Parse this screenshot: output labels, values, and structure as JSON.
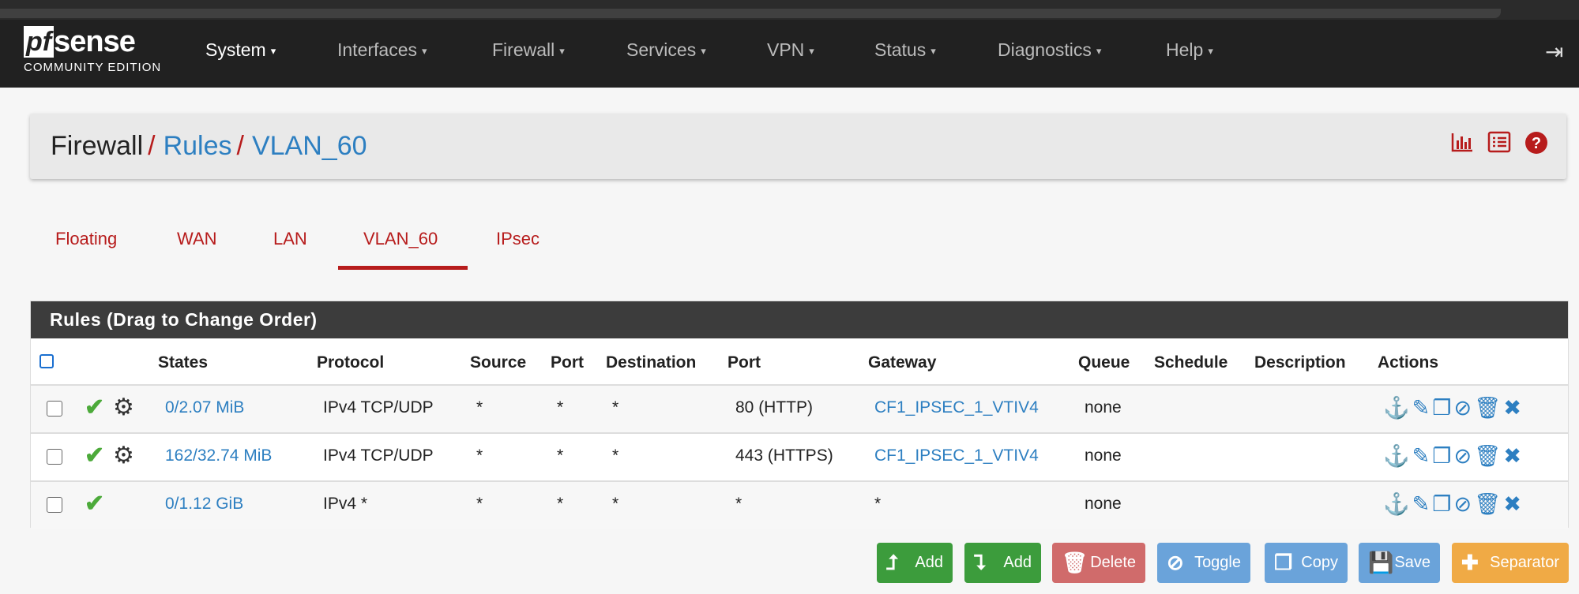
{
  "logo": {
    "pf": "pf",
    "sense": "sense",
    "edition": "COMMUNITY EDITION"
  },
  "nav": {
    "items": [
      {
        "label": "System"
      },
      {
        "label": "Interfaces"
      },
      {
        "label": "Firewall"
      },
      {
        "label": "Services"
      },
      {
        "label": "VPN"
      },
      {
        "label": "Status"
      },
      {
        "label": "Diagnostics"
      },
      {
        "label": "Help"
      }
    ],
    "caret": "▾",
    "logout_icon": "⇥"
  },
  "breadcrumb": {
    "root": "Firewall",
    "sep": "/",
    "rules": "Rules",
    "current": "VLAN_60"
  },
  "tabs": [
    {
      "label": "Floating"
    },
    {
      "label": "WAN"
    },
    {
      "label": "LAN"
    },
    {
      "label": "VLAN_60",
      "active": true
    },
    {
      "label": "IPsec"
    }
  ],
  "panel": {
    "title": "Rules (Drag to Change Order)",
    "headers": [
      "States",
      "Protocol",
      "Source",
      "Port",
      "Destination",
      "Port",
      "Gateway",
      "Queue",
      "Schedule",
      "Description",
      "Actions"
    ],
    "rows": [
      {
        "states": "0/2.07 MiB",
        "protocol": "IPv4 TCP/UDP",
        "source": "*",
        "sport": "*",
        "destination": "*",
        "dport": "80 (HTTP)",
        "gateway": "CF1_IPSEC_1_VTIV4",
        "queue": "none",
        "schedule": "",
        "description": ""
      },
      {
        "states": "162/32.74 MiB",
        "protocol": "IPv4 TCP/UDP",
        "source": "*",
        "sport": "*",
        "destination": "*",
        "dport": "443 (HTTPS)",
        "gateway": "CF1_IPSEC_1_VTIV4",
        "queue": "none",
        "schedule": "",
        "description": ""
      },
      {
        "states": "0/1.12 GiB",
        "protocol": "IPv4 *",
        "source": "*",
        "sport": "*",
        "destination": "*",
        "dport": "*",
        "gateway": "*",
        "queue": "none",
        "schedule": "",
        "description": ""
      }
    ]
  },
  "buttons": {
    "add_top": "Add",
    "add_bottom": "Add",
    "delete": "Delete",
    "toggle": "Toggle",
    "copy": "Copy",
    "save": "Save",
    "separator": "Separator"
  },
  "colors": {
    "accent": "#b71c1c",
    "link": "#2d7fc1",
    "success": "#3c9c3c",
    "danger": "#d06b6b",
    "info": "#6aa3da",
    "warning": "#f0aa45"
  }
}
